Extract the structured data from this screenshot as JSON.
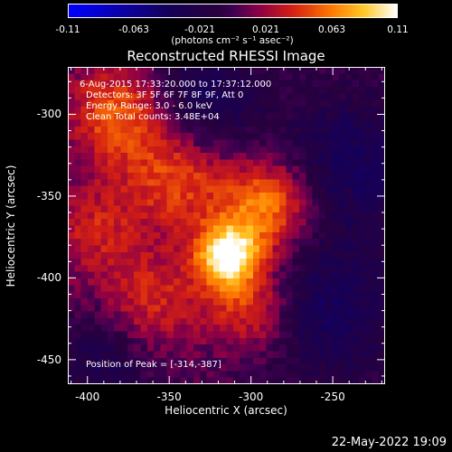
{
  "colorbar": {
    "ticks": [
      "-0.11",
      "-0.063",
      "-0.021",
      "0.021",
      "0.063",
      "0.11"
    ],
    "units": "(photons cm⁻² s⁻¹ asec⁻²)"
  },
  "chart_data": {
    "type": "heatmap",
    "title": "Reconstructed RHESSI Image",
    "xlabel": "Heliocentric X (arcsec)",
    "ylabel": "Heliocentric Y (arcsec)",
    "xlim": [
      -412,
      -218
    ],
    "ylim": [
      -465,
      -271
    ],
    "x_ticks": [
      "-400",
      "-350",
      "-300",
      "-250"
    ],
    "y_ticks": [
      "-300",
      "-350",
      "-400",
      "-450"
    ],
    "color_range": [
      -0.11,
      0.11
    ],
    "peak": [
      -314,
      -387
    ],
    "annotations": {
      "time_range": "6-Aug-2015 17:33:20.000 to 17:37:12.000",
      "detectors": "Detectors: 3F 5F 6F 7F 8F 9F, Att 0",
      "energy": "Energy Range: 3.0 - 6.0 keV",
      "clean": "Clean    Total counts: 3.48E+04",
      "peak_text": "Position of Peak = [-314,-387]"
    }
  },
  "timestamp": "22-May-2022 19:09"
}
